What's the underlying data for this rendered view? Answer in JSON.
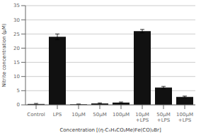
{
  "chart_data": {
    "type": "bar",
    "categories": [
      "Control",
      "LPS",
      "10μM",
      "50μM",
      "100μM",
      "10μM\n+LPS",
      "50μM\n+LPS",
      "100μM\n+LPS"
    ],
    "values": [
      0.3,
      24.0,
      0.2,
      0.5,
      0.8,
      26.0,
      6.1,
      2.8
    ],
    "errors": [
      0.2,
      1.0,
      0.1,
      0.2,
      0.2,
      0.6,
      0.4,
      0.3
    ],
    "color": "#111111",
    "xlabel": "Concentration [(η-C₅H₄CO₂Me)Fe(CO)₂Br]",
    "ylabel": "Nitrite concentration (μM)",
    "ylim": [
      0,
      35
    ],
    "yticks": [
      0,
      5,
      10,
      15,
      20,
      25,
      30,
      35
    ],
    "grid": true
  }
}
